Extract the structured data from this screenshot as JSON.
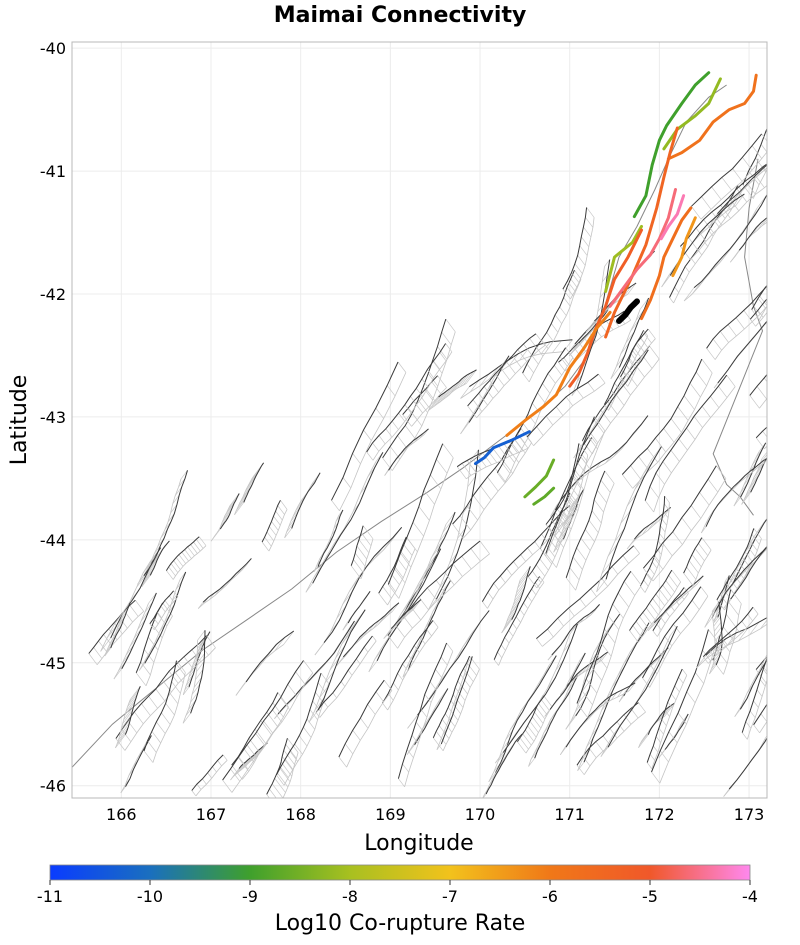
{
  "chart_data": {
    "type": "map",
    "title": "Maimai Connectivity",
    "xlabel": "Longitude",
    "ylabel": "Latitude",
    "xlim": [
      165.45,
      173.2
    ],
    "ylim": [
      -46.1,
      -39.95
    ],
    "xticks": [
      166,
      167,
      168,
      169,
      170,
      171,
      172,
      173
    ],
    "yticks": [
      -40,
      -41,
      -42,
      -43,
      -44,
      -45,
      -46
    ],
    "grid": true,
    "target_fault": {
      "name": "Maimai",
      "color": "#000000",
      "trace": [
        [
          171.55,
          -42.22
        ],
        [
          171.62,
          -42.17
        ],
        [
          171.68,
          -42.11
        ],
        [
          171.75,
          -42.06
        ]
      ]
    },
    "colorbar": {
      "label": "Log10 Co-rupture Rate",
      "min": -11,
      "max": -4,
      "ticks": [
        -11,
        -10,
        -9,
        -8,
        -7,
        -6,
        -5,
        -4
      ],
      "stops": [
        {
          "value": -11,
          "color": "#0a3cff"
        },
        {
          "value": -10,
          "color": "#1a6fbf"
        },
        {
          "value": -9,
          "color": "#3fa02c"
        },
        {
          "value": -8,
          "color": "#a8c020"
        },
        {
          "value": -7,
          "color": "#f2c21c"
        },
        {
          "value": -6,
          "color": "#f07818"
        },
        {
          "value": -5,
          "color": "#f0582a"
        },
        {
          "value": -4,
          "color": "#ff88ee"
        }
      ]
    },
    "coloured_faults": [
      {
        "rate": -9.0,
        "trace": [
          [
            171.72,
            -41.37
          ],
          [
            171.85,
            -41.2
          ],
          [
            171.92,
            -40.95
          ],
          [
            172.0,
            -40.75
          ],
          [
            172.08,
            -40.63
          ],
          [
            172.25,
            -40.45
          ],
          [
            172.4,
            -40.3
          ],
          [
            172.55,
            -40.2
          ]
        ]
      },
      {
        "rate": -8.2,
        "trace": [
          [
            172.05,
            -40.82
          ],
          [
            172.2,
            -40.66
          ],
          [
            172.4,
            -40.55
          ],
          [
            172.55,
            -40.45
          ],
          [
            172.68,
            -40.25
          ]
        ]
      },
      {
        "rate": -5.8,
        "trace": [
          [
            172.1,
            -40.9
          ],
          [
            172.25,
            -40.85
          ],
          [
            172.45,
            -40.75
          ],
          [
            172.6,
            -40.6
          ],
          [
            172.78,
            -40.5
          ],
          [
            172.95,
            -40.45
          ],
          [
            173.05,
            -40.35
          ],
          [
            173.08,
            -40.22
          ]
        ]
      },
      {
        "rate": -5.4,
        "trace": [
          [
            171.4,
            -42.35
          ],
          [
            171.5,
            -42.15
          ],
          [
            171.7,
            -41.85
          ],
          [
            171.85,
            -41.6
          ],
          [
            171.97,
            -41.3
          ],
          [
            172.05,
            -41.05
          ],
          [
            172.12,
            -40.85
          ],
          [
            172.2,
            -40.65
          ]
        ]
      },
      {
        "rate": -8.1,
        "trace": [
          [
            171.4,
            -41.98
          ],
          [
            171.5,
            -41.7
          ],
          [
            171.7,
            -41.58
          ],
          [
            171.8,
            -41.45
          ]
        ]
      },
      {
        "rate": -4.6,
        "trace": [
          [
            171.45,
            -42.1
          ],
          [
            171.6,
            -41.95
          ],
          [
            171.75,
            -41.8
          ],
          [
            171.9,
            -41.68
          ],
          [
            172.0,
            -41.55
          ],
          [
            172.1,
            -41.38
          ],
          [
            172.18,
            -41.15
          ]
        ]
      },
      {
        "rate": -4.3,
        "trace": [
          [
            172.02,
            -41.55
          ],
          [
            172.1,
            -41.45
          ],
          [
            172.2,
            -41.35
          ],
          [
            172.27,
            -41.2
          ]
        ]
      },
      {
        "rate": -5.2,
        "trace": [
          [
            171.0,
            -42.75
          ],
          [
            171.1,
            -42.65
          ],
          [
            171.2,
            -42.48
          ],
          [
            171.28,
            -42.3
          ],
          [
            171.4,
            -42.1
          ],
          [
            171.5,
            -41.88
          ],
          [
            171.65,
            -41.7
          ],
          [
            171.8,
            -41.48
          ]
        ]
      },
      {
        "rate": -6.1,
        "trace": [
          [
            170.3,
            -43.15
          ],
          [
            170.5,
            -43.03
          ],
          [
            170.7,
            -42.92
          ],
          [
            170.85,
            -42.82
          ],
          [
            171.0,
            -42.6
          ],
          [
            171.15,
            -42.45
          ],
          [
            171.3,
            -42.28
          ],
          [
            171.45,
            -42.15
          ]
        ]
      },
      {
        "rate": -5.7,
        "trace": [
          [
            171.8,
            -42.2
          ],
          [
            171.9,
            -42.05
          ],
          [
            172.0,
            -41.85
          ],
          [
            172.05,
            -41.7
          ],
          [
            172.15,
            -41.55
          ],
          [
            172.25,
            -41.4
          ],
          [
            172.35,
            -41.3
          ]
        ]
      },
      {
        "rate": -6.4,
        "trace": [
          [
            172.15,
            -41.85
          ],
          [
            172.25,
            -41.7
          ],
          [
            172.3,
            -41.55
          ],
          [
            172.4,
            -41.38
          ]
        ]
      },
      {
        "rate": -10.3,
        "trace": [
          [
            169.95,
            -43.38
          ],
          [
            170.05,
            -43.33
          ],
          [
            170.15,
            -43.25
          ],
          [
            170.35,
            -43.19
          ],
          [
            170.55,
            -43.12
          ]
        ]
      },
      {
        "rate": -8.6,
        "trace": [
          [
            170.5,
            -43.65
          ],
          [
            170.62,
            -43.57
          ],
          [
            170.74,
            -43.48
          ],
          [
            170.82,
            -43.35
          ]
        ]
      },
      {
        "rate": -8.7,
        "trace": [
          [
            170.6,
            -43.71
          ],
          [
            170.72,
            -43.65
          ],
          [
            170.82,
            -43.58
          ]
        ]
      }
    ]
  }
}
